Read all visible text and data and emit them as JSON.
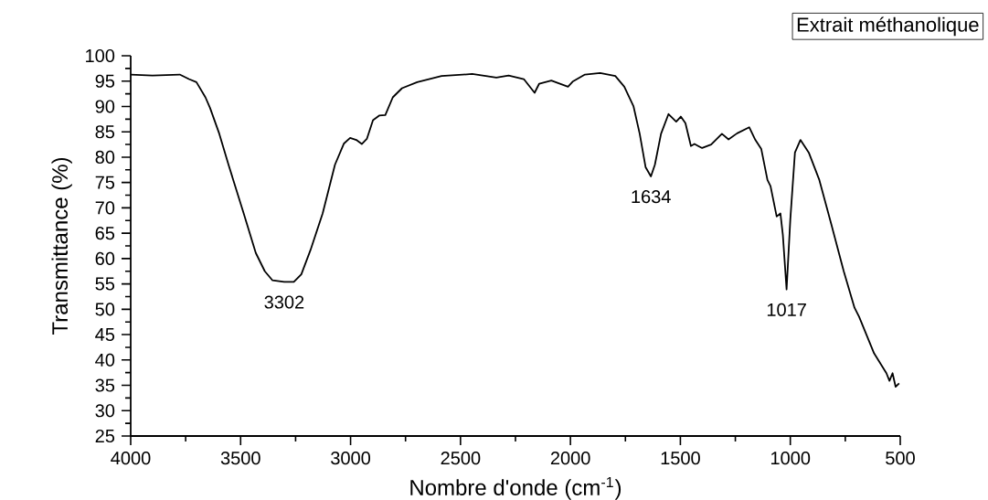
{
  "chart_data": {
    "type": "line",
    "title": "Extrait méthanolique",
    "xlabel": "Nombre d'onde (cm$^{-1}$)",
    "ylabel": "Transmittance (%)",
    "xlim": [
      4000,
      500
    ],
    "ylim": [
      25,
      100
    ],
    "xticks": [
      4000,
      3500,
      3000,
      2500,
      2000,
      1500,
      1000,
      500
    ],
    "yticks": [
      25,
      30,
      35,
      40,
      45,
      50,
      55,
      60,
      65,
      70,
      75,
      80,
      85,
      90,
      95,
      100
    ],
    "grid": false,
    "marker": "none",
    "line_style": "solid",
    "series": [
      {
        "color": "#000000",
        "x": [
          4000,
          3901,
          3777,
          3735,
          3701,
          3660,
          3639,
          3597,
          3555,
          3486,
          3431,
          3390,
          3355,
          3302,
          3258,
          3224,
          3182,
          3127,
          3071,
          3030,
          3002,
          2974,
          2949,
          2926,
          2898,
          2870,
          2842,
          2808,
          2766,
          2697,
          2586,
          2447,
          2337,
          2281,
          2212,
          2163,
          2142,
          2087,
          2011,
          1990,
          1934,
          1865,
          1796,
          1755,
          1713,
          1685,
          1658,
          1634,
          1616,
          1588,
          1554,
          1519,
          1498,
          1477,
          1452,
          1436,
          1401,
          1360,
          1311,
          1281,
          1242,
          1187,
          1159,
          1132,
          1104,
          1090,
          1062,
          1045,
          1034,
          1017,
          1000,
          979,
          954,
          916,
          868,
          812,
          757,
          708,
          687,
          619,
          563,
          549,
          535,
          521,
          505
        ],
        "values": [
          96.3,
          96.1,
          96.3,
          95.4,
          94.8,
          91.8,
          89.7,
          84.6,
          78.5,
          68.9,
          61.1,
          57.5,
          55.7,
          55.4,
          55.4,
          56.9,
          61.7,
          68.9,
          78.5,
          82.7,
          83.8,
          83.4,
          82.6,
          83.6,
          87.3,
          88.2,
          88.3,
          91.8,
          93.6,
          94.8,
          96.0,
          96.4,
          95.7,
          96.1,
          95.4,
          92.7,
          94.5,
          95.1,
          93.9,
          94.9,
          96.3,
          96.6,
          96.0,
          93.9,
          90.0,
          84.6,
          78.0,
          76.2,
          78.5,
          84.6,
          88.5,
          87.0,
          88.0,
          86.7,
          82.2,
          82.6,
          81.8,
          82.5,
          84.6,
          83.5,
          84.7,
          85.9,
          83.4,
          81.6,
          75.5,
          74.3,
          68.3,
          68.9,
          64.7,
          53.9,
          67.7,
          80.9,
          83.4,
          80.9,
          75.5,
          66.5,
          57.5,
          50.3,
          48.5,
          41.3,
          37.4,
          35.9,
          37.4,
          34.7,
          35.4
        ]
      }
    ],
    "annotations": [
      {
        "text": "3302",
        "x": 3302,
        "y": 55.4
      },
      {
        "text": "1634",
        "x": 1634,
        "y": 76.2
      },
      {
        "text": "1017",
        "x": 1017,
        "y": 53.9
      }
    ]
  }
}
